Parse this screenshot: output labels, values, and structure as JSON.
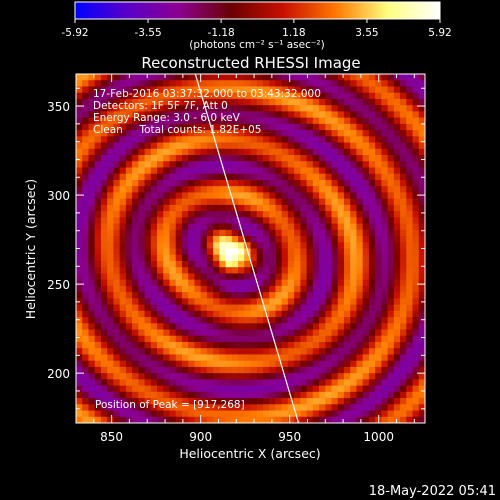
{
  "chart_data": {
    "type": "heatmap",
    "title": "Reconstructed RHESSI Image",
    "xlabel": "Heliocentric X (arcsec)",
    "ylabel": "Heliocentric Y (arcsec)",
    "xlim": [
      830,
      1026
    ],
    "ylim": [
      172,
      368
    ],
    "x_ticks": [
      850,
      900,
      950,
      1000
    ],
    "y_ticks": [
      200,
      250,
      300,
      350
    ],
    "colorbar": {
      "range": [
        -5.92,
        5.92
      ],
      "ticks": [
        "-5.92",
        "-3.55",
        "-1.18",
        "1.18",
        "3.55",
        "5.92"
      ],
      "unit_label": "(photons cm⁻² s⁻¹ asec⁻²)",
      "colormap": [
        "#0000ff",
        "#5a00c8",
        "#8c0090",
        "#6a0000",
        "#c81000",
        "#ff7800",
        "#ffff80",
        "#ffffff"
      ]
    },
    "annotations": {
      "time_range": "17-Feb-2016 03:37:32.000 to 03:43:32.000",
      "detectors": "Detectors: 1F 5F 7F, Att 0",
      "energy_range": "Energy Range: 3.0 - 6.0 keV",
      "algorithm": "Clean     Total counts: 1.82E+05",
      "peak": "Position of Peak = [917,268]"
    },
    "peak_position": [
      917,
      268
    ],
    "limb_line": [
      [
        897,
        368
      ],
      [
        955,
        172
      ]
    ],
    "image_model": {
      "peak_value": 5.92,
      "core_width_arcsec": 6,
      "ring_period_arcsec": 31,
      "aspect_x": 1.05,
      "aspect_y": 0.95,
      "background_min": -5.92
    }
  },
  "footer": {
    "date": "18-May-2022 05:41"
  }
}
